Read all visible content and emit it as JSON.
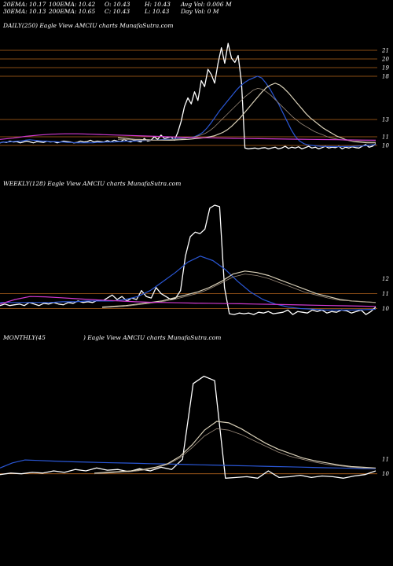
{
  "header": {
    "ema20": "20EMA: 10.17",
    "ema100": "100EMA: 10.42",
    "open": "O: 10.43",
    "high": "H: 10.43",
    "avgvol": "Avg Vol: 0.006  M",
    "ema30": "30EMA: 10.13",
    "ema200": "200EMA: 10.65",
    "close": "C: 10.43",
    "low": "L: 10.43",
    "dayvol": "Day Vol: 0  M"
  },
  "panels": {
    "daily_label": "DAILY(250) Eagle  View  AMCIU charts MunafaSutra.com",
    "weekly_label": "WEEKLY(128) Eagle  View  AMCIU charts MunafaSutra.com",
    "monthly_label_left": "MONTHLY(45",
    "monthly_label_right": ") Eagle  View  AMCIU charts MunafaSutra.com"
  },
  "colors": {
    "price": "#ffffff",
    "blue": "#2a57d6",
    "magenta": "#d23ad2",
    "grayA": "#d9d0b8",
    "grayB": "#9a8a7a",
    "ref": "#b5651d"
  },
  "chart_data": [
    {
      "type": "line",
      "name": "daily",
      "ylim": [
        9,
        23
      ],
      "yticks": [
        21,
        20,
        19,
        18,
        13,
        11,
        10
      ],
      "ref_levels": [
        21,
        20,
        19,
        18,
        13,
        11,
        10
      ],
      "series": [
        {
          "key": "price",
          "color": "#ffffff",
          "y": [
            10.3,
            10.4,
            10.35,
            10.5,
            10.4,
            10.45,
            10.3,
            10.4,
            10.5,
            10.4,
            10.3,
            10.45,
            10.4,
            10.35,
            10.5,
            10.4,
            10.45,
            10.3,
            10.4,
            10.5,
            10.45,
            10.4,
            10.3,
            10.35,
            10.5,
            10.4,
            10.45,
            10.6,
            10.4,
            10.5,
            10.45,
            10.4,
            10.55,
            10.4,
            10.6,
            10.5,
            10.45,
            10.7,
            10.5,
            10.4,
            10.6,
            10.5,
            10.4,
            10.8,
            10.5,
            10.6,
            11,
            10.7,
            11.2,
            10.8,
            10.9,
            11,
            10.6,
            11.5,
            12.8,
            14.5,
            15.5,
            14.8,
            16.2,
            15.2,
            17.5,
            16.8,
            18.8,
            18.2,
            17.2,
            19.5,
            21.3,
            19.5,
            21.8,
            20.1,
            19.6,
            20.4,
            17.2,
            9.7,
            9.6,
            9.65,
            9.7,
            9.6,
            9.7,
            9.75,
            9.6,
            9.7,
            9.8,
            9.6,
            9.7,
            9.9,
            9.65,
            9.8,
            9.7,
            9.85,
            9.6,
            9.75,
            9.9,
            9.7,
            9.8,
            9.6,
            9.75,
            9.9,
            9.7,
            9.8,
            9.75,
            9.9,
            9.6,
            9.8,
            9.7,
            9.85,
            9.75,
            9.7,
            9.9,
            10.1,
            9.8,
            9.9,
            10.2
          ]
        },
        {
          "key": "blue",
          "color": "#2a57d6",
          "y": [
            10.3,
            10.4,
            10.4,
            10.45,
            10.5,
            10.5,
            10.6,
            10.65,
            10.6,
            10.55,
            10.5,
            10.5,
            10.45,
            10.45,
            10.4,
            10.4,
            10.35,
            10.35,
            10.3,
            10.3,
            10.3,
            10.3,
            10.3,
            10.35,
            10.35,
            10.4,
            10.4,
            10.4,
            10.45,
            10.45,
            10.5,
            10.5,
            10.5,
            10.55,
            10.55,
            10.6,
            10.6,
            10.6,
            10.65,
            10.7,
            10.7,
            10.75,
            10.8,
            10.8,
            10.85,
            10.9,
            11,
            11.2,
            11.5,
            12,
            12.6,
            13.3,
            14,
            14.6,
            15.2,
            15.8,
            16.4,
            16.9,
            17.3,
            17.6,
            17.8,
            18,
            17.8,
            17.2,
            16.5,
            15.6,
            14.8,
            13.8,
            12.8,
            11.8,
            11,
            10.5,
            10.2,
            10.05,
            10,
            9.95,
            9.9,
            9.88,
            9.87,
            9.86,
            9.86,
            9.86,
            9.87,
            9.88,
            9.9,
            9.92,
            9.95,
            10,
            10.05,
            10.1
          ]
        },
        {
          "key": "grayA",
          "color": "#d9d0b8",
          "y": [
            10.9,
            10.85,
            10.8,
            10.75,
            10.7,
            10.7,
            10.65,
            10.65,
            10.6,
            10.6,
            10.6,
            10.6,
            10.6,
            10.62,
            10.65,
            10.68,
            10.7,
            10.75,
            10.8,
            10.85,
            10.9,
            11,
            11.1,
            11.3,
            11.5,
            11.8,
            12.2,
            12.7,
            13.2,
            13.8,
            14.4,
            15,
            15.6,
            16.2,
            16.7,
            17,
            17.2,
            17,
            16.6,
            16.1,
            15.5,
            14.9,
            14.3,
            13.7,
            13.2,
            12.8,
            12.4,
            12,
            11.7,
            11.4,
            11.1,
            10.9,
            10.7,
            10.55,
            10.45,
            10.4,
            10.35,
            10.3,
            10.3,
            10.3
          ]
        },
        {
          "key": "grayB",
          "color": "#9a8a7a",
          "y": [
            10.7,
            10.7,
            10.68,
            10.65,
            10.63,
            10.62,
            10.6,
            10.6,
            10.6,
            10.6,
            10.62,
            10.64,
            10.66,
            10.7,
            10.75,
            10.8,
            10.87,
            10.95,
            11.05,
            11.2,
            11.4,
            11.7,
            12.1,
            12.6,
            13.1,
            13.6,
            14.1,
            14.6,
            15.1,
            15.6,
            16,
            16.4,
            16.6,
            16.5,
            16.2,
            15.8,
            15.3,
            14.8,
            14.3,
            13.8,
            13.3,
            12.9,
            12.5,
            12.2,
            11.9,
            11.6,
            11.4,
            11.2,
            11,
            10.85,
            10.75,
            10.65,
            10.6,
            10.55,
            10.5,
            10.48,
            10.46,
            10.44,
            10.42,
            10.4
          ]
        },
        {
          "key": "magenta",
          "color": "#d23ad2",
          "y": [
            10.7,
            10.85,
            11.05,
            11.2,
            11.3,
            11.35,
            11.35,
            11.3,
            11.25,
            11.2,
            11.15,
            11.1,
            11.05,
            11,
            10.95,
            10.9,
            10.88,
            10.85,
            10.82,
            10.8,
            10.78,
            10.76,
            10.74,
            10.72,
            10.7,
            10.68,
            10.66,
            10.64,
            10.62,
            10.6
          ]
        }
      ]
    },
    {
      "type": "line",
      "name": "weekly",
      "ylim": [
        9.5,
        18
      ],
      "yticks": [
        12,
        11,
        10
      ],
      "ref_levels": [
        11,
        10
      ],
      "series": [
        {
          "key": "price",
          "color": "#ffffff",
          "y": [
            10.2,
            10.3,
            10.2,
            10.25,
            10.3,
            10.2,
            10.4,
            10.3,
            10.2,
            10.35,
            10.3,
            10.4,
            10.3,
            10.25,
            10.4,
            10.35,
            10.5,
            10.4,
            10.45,
            10.4,
            10.55,
            10.5,
            10.7,
            10.9,
            10.6,
            10.8,
            10.5,
            10.7,
            10.6,
            11.2,
            10.8,
            10.7,
            11.4,
            11,
            10.8,
            10.6,
            10.7,
            11.2,
            13.5,
            14.8,
            15.1,
            15,
            15.3,
            16.7,
            16.9,
            16.8,
            11.4,
            9.65,
            9.6,
            9.7,
            9.65,
            9.7,
            9.6,
            9.75,
            9.7,
            9.8,
            9.65,
            9.7,
            9.75,
            9.9,
            9.6,
            9.8,
            9.75,
            9.7,
            9.9,
            9.8,
            9.9,
            9.7,
            9.8,
            9.75,
            9.9,
            9.85,
            9.7,
            9.8,
            9.9,
            9.6,
            9.8,
            10.1
          ]
        },
        {
          "key": "blue",
          "color": "#2a57d6",
          "y": [
            10.4,
            10.4,
            10.4,
            10.4,
            10.4,
            10.45,
            10.45,
            10.5,
            10.5,
            10.5,
            10.6,
            10.8,
            11.2,
            11.8,
            12.4,
            13.1,
            13.5,
            13.2,
            12.6,
            11.8,
            11.1,
            10.6,
            10.3,
            10.1,
            10,
            9.95,
            9.9,
            9.9,
            9.9,
            9.92,
            9.95
          ]
        },
        {
          "key": "grayA",
          "color": "#d9d0b8",
          "y": [
            10.1,
            10.15,
            10.2,
            10.3,
            10.4,
            10.5,
            10.7,
            10.9,
            11.1,
            11.4,
            11.8,
            12.3,
            12.5,
            12.4,
            12.2,
            11.9,
            11.6,
            11.3,
            11,
            10.8,
            10.6,
            10.5,
            10.45,
            10.4
          ]
        },
        {
          "key": "grayB",
          "color": "#9a8a7a",
          "y": [
            10.05,
            10.1,
            10.15,
            10.25,
            10.35,
            10.45,
            10.6,
            10.8,
            11,
            11.3,
            11.7,
            12.1,
            12.3,
            12.2,
            12,
            11.7,
            11.4,
            11.1,
            10.9,
            10.7,
            10.55,
            10.5,
            10.45,
            10.42
          ]
        },
        {
          "key": "magenta",
          "color": "#d23ad2",
          "y": [
            10.3,
            10.6,
            10.8,
            10.78,
            10.72,
            10.66,
            10.6,
            10.55,
            10.5,
            10.45,
            10.42,
            10.4,
            10.38,
            10.36,
            10.35,
            10.33,
            10.32,
            10.3,
            10.28,
            10.26,
            10.24,
            10.22,
            10.2,
            10.18,
            10.16,
            10.14
          ]
        }
      ]
    },
    {
      "type": "line",
      "name": "monthly",
      "ylim": [
        9.5,
        19
      ],
      "yticks": [
        11,
        10
      ],
      "ref_levels": [
        10
      ],
      "series": [
        {
          "key": "price",
          "color": "#ffffff",
          "y": [
            9.95,
            10.05,
            10,
            10.1,
            10.05,
            10.2,
            10.1,
            10.3,
            10.2,
            10.4,
            10.25,
            10.3,
            10.15,
            10.35,
            10.2,
            10.45,
            10.3,
            11,
            16.2,
            16.7,
            16.4,
            9.7,
            9.75,
            9.8,
            9.7,
            10.2,
            9.75,
            9.8,
            9.9,
            9.75,
            9.85,
            9.8,
            9.7,
            9.85,
            9.95,
            10.2
          ]
        },
        {
          "key": "blue",
          "color": "#2a57d6",
          "y": [
            10.4,
            10.75,
            10.95,
            10.92,
            10.88,
            10.85,
            10.82,
            10.8,
            10.78,
            10.76,
            10.74,
            10.72,
            10.7,
            10.68,
            10.66,
            10.64,
            10.62,
            10.6,
            10.58,
            10.56,
            10.54,
            10.52,
            10.5,
            10.48,
            10.46,
            10.44,
            10.42,
            10.4,
            10.38,
            10.36,
            10.35
          ]
        },
        {
          "key": "grayA",
          "color": "#d9d0b8",
          "y": [
            10.05,
            10.1,
            10.15,
            10.2,
            10.3,
            10.45,
            10.7,
            11.2,
            12,
            13,
            13.6,
            13.5,
            13.1,
            12.6,
            12.1,
            11.7,
            11.4,
            11.1,
            10.9,
            10.75,
            10.6,
            10.5,
            10.45,
            10.4
          ]
        },
        {
          "key": "grayB",
          "color": "#9a8a7a",
          "y": [
            10,
            10.05,
            10.1,
            10.15,
            10.25,
            10.4,
            10.65,
            11.1,
            11.8,
            12.6,
            13.1,
            13,
            12.7,
            12.3,
            11.9,
            11.5,
            11.2,
            11,
            10.8,
            10.65,
            10.55,
            10.45,
            10.4,
            10.38
          ]
        }
      ]
    }
  ]
}
